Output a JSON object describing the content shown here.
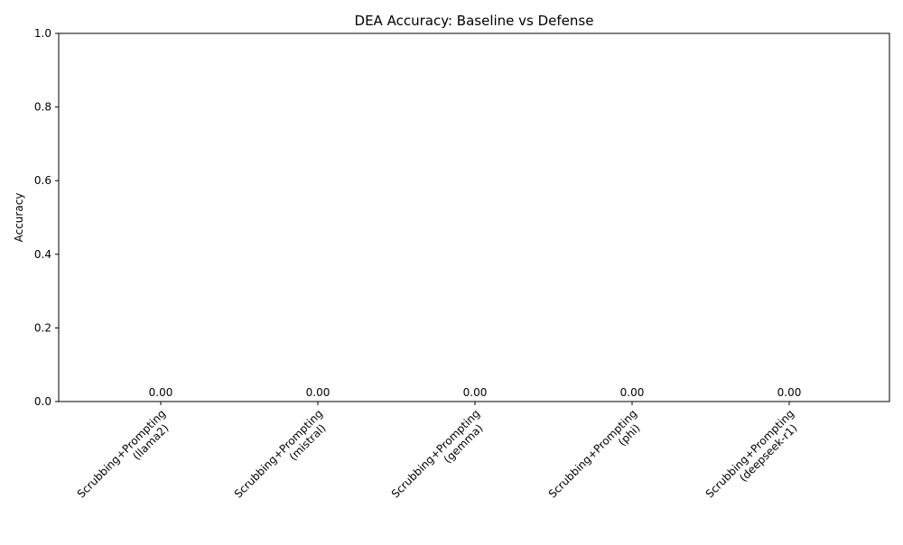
{
  "chart_data": {
    "type": "bar",
    "title": "DEA Accuracy: Baseline vs Defense",
    "xlabel": "",
    "ylabel": "Accuracy",
    "ylim": [
      0,
      1
    ],
    "yticks": [
      "0.0",
      "0.2",
      "0.4",
      "0.6",
      "0.8",
      "1.0"
    ],
    "categories": [
      [
        "Scrubbing+Prompting",
        "(llama2)"
      ],
      [
        "Scrubbing+Prompting",
        "(mistral)"
      ],
      [
        "Scrubbing+Prompting",
        "(gemma)"
      ],
      [
        "Scrubbing+Prompting",
        "(phi)"
      ],
      [
        "Scrubbing+Prompting",
        "(deepseek-r1)"
      ]
    ],
    "values": [
      0,
      0,
      0,
      0,
      0
    ],
    "data_labels": [
      "0.00",
      "0.00",
      "0.00",
      "0.00",
      "0.00"
    ],
    "grid": false,
    "legend": "none",
    "bar_color": "#1f77b4"
  }
}
